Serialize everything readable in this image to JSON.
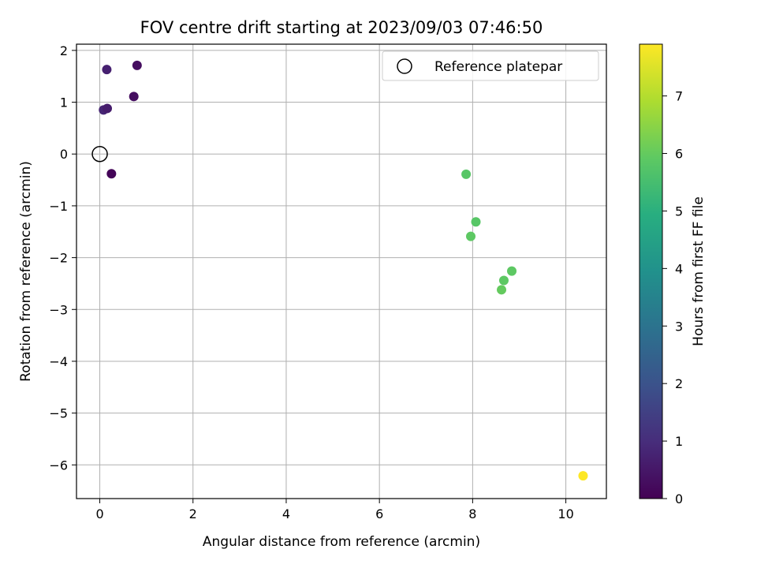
{
  "chart_data": {
    "type": "scatter",
    "title": "FOV centre drift starting at 2023/09/03 07:46:50",
    "xlabel": "Angular distance from reference (arcmin)",
    "ylabel": "Rotation from reference (arcmin)",
    "xlim": [
      -0.5,
      10.87
    ],
    "ylim": [
      -6.65,
      2.12
    ],
    "xticks": [
      0,
      2,
      4,
      6,
      8,
      10
    ],
    "yticks": [
      2,
      1,
      0,
      -1,
      -2,
      -3,
      -4,
      -5,
      -6
    ],
    "grid": true,
    "legend": {
      "placement": "top-right",
      "entries": [
        "Reference platepar"
      ]
    },
    "reference_point": {
      "x": 0,
      "y": 0
    },
    "colorbar": {
      "label": "Hours from first FF file",
      "min": 0,
      "max": 7.9,
      "ticks": [
        0,
        1,
        2,
        3,
        4,
        5,
        6,
        7
      ],
      "colormap": "viridis"
    },
    "points": [
      {
        "x": 0.15,
        "y": 1.63,
        "hours": 0.7
      },
      {
        "x": 0.8,
        "y": 1.71,
        "hours": 0.3
      },
      {
        "x": 0.73,
        "y": 1.11,
        "hours": 0.3
      },
      {
        "x": 0.08,
        "y": 0.85,
        "hours": 0.8
      },
      {
        "x": 0.16,
        "y": 0.88,
        "hours": 0.6
      },
      {
        "x": 0.25,
        "y": -0.38,
        "hours": 0.1
      },
      {
        "x": 7.86,
        "y": -0.39,
        "hours": 5.8
      },
      {
        "x": 8.07,
        "y": -1.31,
        "hours": 5.8
      },
      {
        "x": 7.96,
        "y": -1.59,
        "hours": 5.9
      },
      {
        "x": 8.84,
        "y": -2.26,
        "hours": 5.9
      },
      {
        "x": 8.67,
        "y": -2.44,
        "hours": 5.9
      },
      {
        "x": 8.62,
        "y": -2.62,
        "hours": 6.0
      },
      {
        "x": 10.37,
        "y": -6.21,
        "hours": 7.9
      }
    ]
  }
}
